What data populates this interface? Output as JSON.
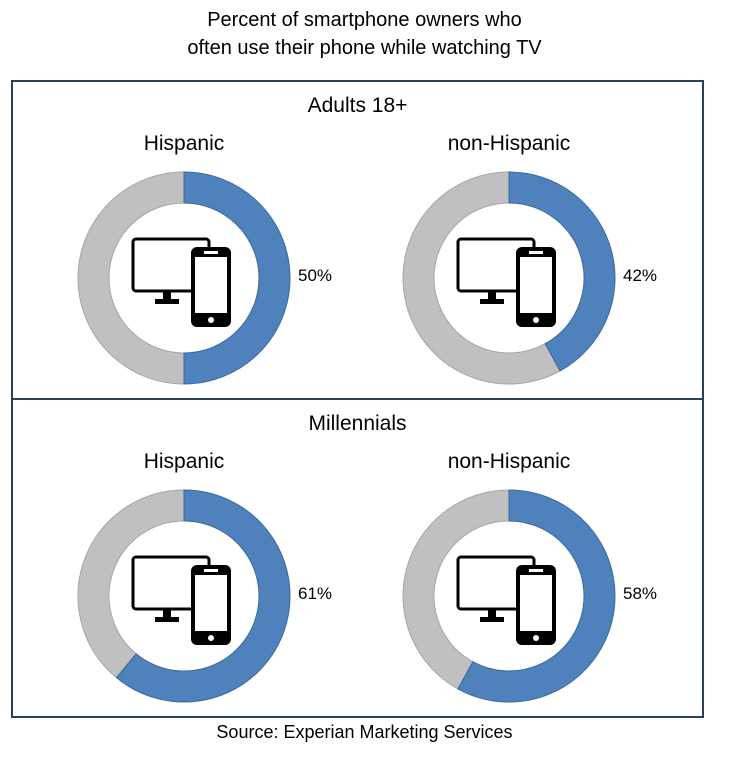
{
  "title_line1": "Percent of smartphone owners who",
  "title_line2": "often use their phone while watching TV",
  "source": "Source: Experian  Marketing Services",
  "colors": {
    "filled": "#4f81bd",
    "remainder": "#c0c0c0",
    "border": "#2b3f5c"
  },
  "icon": "monitor-and-smartphone-icon",
  "chart_data": [
    {
      "type": "pie",
      "title": "Adults 18+",
      "groups": [
        {
          "label": "Hispanic",
          "value": 50,
          "value_label": "50%"
        },
        {
          "label": "non-Hispanic",
          "value": 42,
          "value_label": "42%"
        }
      ]
    },
    {
      "type": "pie",
      "title": "Millennials",
      "groups": [
        {
          "label": "Hispanic",
          "value": 61,
          "value_label": "61%"
        },
        {
          "label": "non-Hispanic",
          "value": 58,
          "value_label": "58%"
        }
      ]
    }
  ]
}
